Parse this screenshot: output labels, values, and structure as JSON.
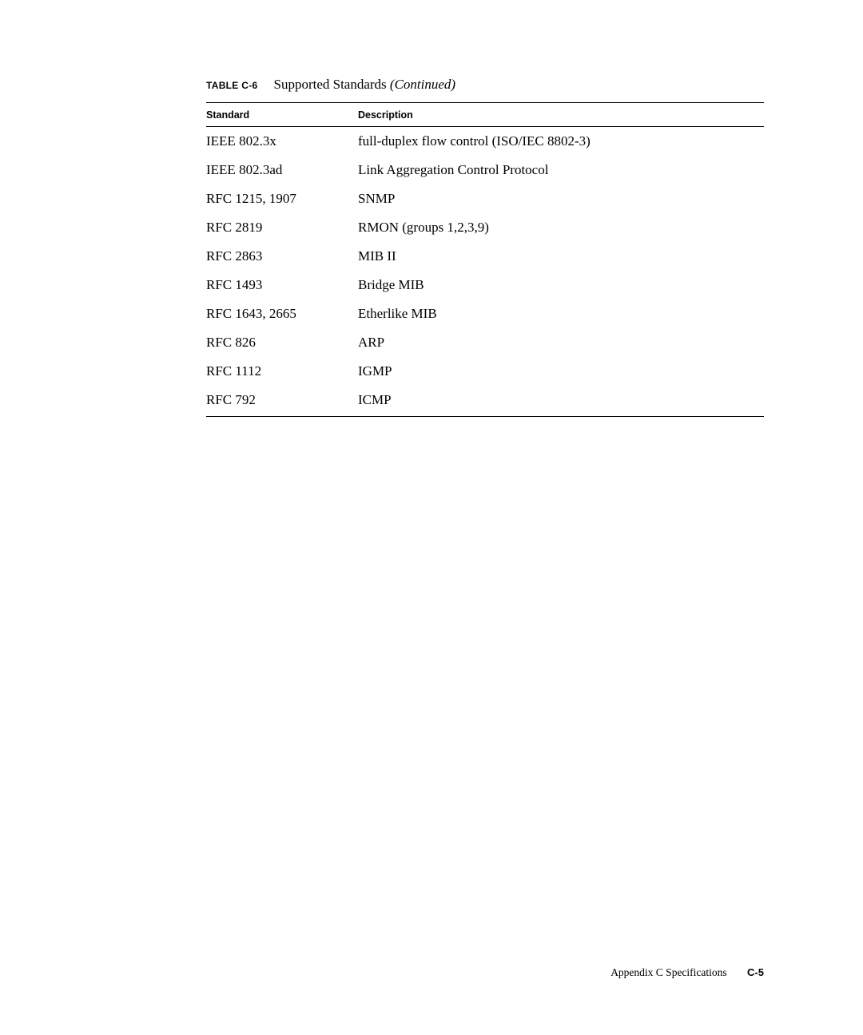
{
  "caption": {
    "label": "TABLE C-6",
    "title_main": "Supported Standards ",
    "title_italic": "(Continued)"
  },
  "table": {
    "columns": [
      "Standard",
      "Description"
    ],
    "rows": [
      [
        "IEEE 802.3x",
        "full-duplex flow control (ISO/IEC 8802-3)"
      ],
      [
        "IEEE 802.3ad",
        "Link Aggregation Control Protocol"
      ],
      [
        "RFC 1215, 1907",
        "SNMP"
      ],
      [
        "RFC 2819",
        "RMON (groups 1,2,3,9)"
      ],
      [
        "RFC 2863",
        "MIB II"
      ],
      [
        "RFC 1493",
        "Bridge MIB"
      ],
      [
        "RFC 1643, 2665",
        "Etherlike MIB"
      ],
      [
        "RFC 826",
        "ARP"
      ],
      [
        "RFC 1112",
        "IGMP"
      ],
      [
        "RFC 792",
        "ICMP"
      ]
    ]
  },
  "footer": {
    "appendix": "Appendix C   Specifications",
    "page": "C-5"
  }
}
